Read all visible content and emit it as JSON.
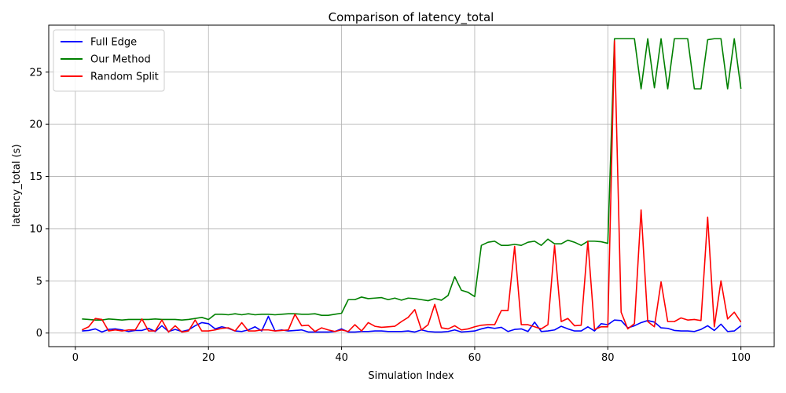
{
  "chart_data": {
    "type": "line",
    "title": "Comparison of latency_total",
    "xlabel": "Simulation Index",
    "ylabel": "latency_total (s)",
    "xlim": [
      -4,
      105
    ],
    "ylim": [
      -1.3,
      29.5
    ],
    "xticks": [
      0,
      20,
      40,
      60,
      80,
      100
    ],
    "yticks": [
      0,
      5,
      10,
      15,
      20,
      25
    ],
    "grid": true,
    "legend_position": "top-left",
    "x": [
      1,
      2,
      3,
      4,
      5,
      6,
      7,
      8,
      9,
      10,
      11,
      12,
      13,
      14,
      15,
      16,
      17,
      18,
      19,
      20,
      21,
      22,
      23,
      24,
      25,
      26,
      27,
      28,
      29,
      30,
      31,
      32,
      33,
      34,
      35,
      36,
      37,
      38,
      39,
      40,
      41,
      42,
      43,
      44,
      45,
      46,
      47,
      48,
      49,
      50,
      51,
      52,
      53,
      54,
      55,
      56,
      57,
      58,
      59,
      60,
      61,
      62,
      63,
      64,
      65,
      66,
      67,
      68,
      69,
      70,
      71,
      72,
      73,
      74,
      75,
      76,
      77,
      78,
      79,
      80,
      81,
      82,
      83,
      84,
      85,
      86,
      87,
      88,
      89,
      90,
      91,
      92,
      93,
      94,
      95,
      96,
      97,
      98,
      99,
      100
    ],
    "series": [
      {
        "name": "Full Edge",
        "color": "#0000ff",
        "values": [
          0.2,
          0.25,
          0.4,
          0.1,
          0.35,
          0.4,
          0.3,
          0.15,
          0.25,
          0.25,
          0.45,
          0.15,
          0.7,
          0.15,
          0.35,
          0.15,
          0.3,
          0.7,
          1.0,
          0.9,
          0.4,
          0.6,
          0.45,
          0.2,
          0.15,
          0.3,
          0.6,
          0.2,
          1.6,
          0.2,
          0.3,
          0.2,
          0.25,
          0.3,
          0.1,
          0.1,
          0.1,
          0.1,
          0.15,
          0.4,
          0.1,
          0.1,
          0.15,
          0.15,
          0.2,
          0.2,
          0.15,
          0.15,
          0.15,
          0.2,
          0.1,
          0.3,
          0.15,
          0.1,
          0.1,
          0.15,
          0.3,
          0.1,
          0.15,
          0.2,
          0.4,
          0.55,
          0.45,
          0.55,
          0.15,
          0.35,
          0.4,
          0.15,
          1.05,
          0.15,
          0.2,
          0.3,
          0.65,
          0.4,
          0.2,
          0.2,
          0.6,
          0.2,
          0.9,
          0.8,
          1.25,
          1.2,
          0.5,
          0.7,
          1.0,
          1.2,
          1.05,
          0.5,
          0.45,
          0.25,
          0.2,
          0.2,
          0.15,
          0.35,
          0.7,
          0.25,
          0.85,
          0.15,
          0.2,
          0.7
        ]
      },
      {
        "name": "Our Method",
        "color": "#008000",
        "values": [
          1.35,
          1.3,
          1.25,
          1.25,
          1.35,
          1.3,
          1.25,
          1.3,
          1.3,
          1.3,
          1.3,
          1.35,
          1.3,
          1.3,
          1.3,
          1.25,
          1.3,
          1.4,
          1.5,
          1.3,
          1.8,
          1.8,
          1.75,
          1.85,
          1.75,
          1.85,
          1.75,
          1.8,
          1.8,
          1.75,
          1.8,
          1.85,
          1.85,
          1.8,
          1.8,
          1.85,
          1.7,
          1.7,
          1.8,
          1.9,
          3.2,
          3.2,
          3.45,
          3.3,
          3.35,
          3.4,
          3.2,
          3.35,
          3.15,
          3.35,
          3.3,
          3.2,
          3.1,
          3.3,
          3.15,
          3.6,
          5.4,
          4.1,
          3.9,
          3.5,
          8.4,
          8.7,
          8.8,
          8.4,
          8.4,
          8.5,
          8.4,
          8.7,
          8.8,
          8.4,
          9.0,
          8.55,
          8.55,
          8.9,
          8.7,
          8.4,
          8.8,
          8.8,
          8.75,
          8.6,
          28.2,
          28.2,
          28.2,
          28.2,
          23.4,
          28.2,
          23.5,
          28.2,
          23.4,
          28.2,
          28.2,
          28.2,
          23.4,
          23.4,
          28.1,
          28.2,
          28.2,
          23.4,
          28.2,
          23.4
        ]
      },
      {
        "name": "Random Split",
        "color": "#ff0000",
        "values": [
          0.3,
          0.6,
          1.4,
          1.3,
          0.2,
          0.3,
          0.2,
          0.3,
          0.3,
          1.35,
          0.2,
          0.2,
          1.25,
          0.1,
          0.7,
          0.1,
          0.2,
          1.25,
          0.2,
          0.2,
          0.3,
          0.45,
          0.5,
          0.2,
          1.0,
          0.2,
          0.2,
          0.3,
          0.3,
          0.2,
          0.25,
          0.3,
          1.8,
          0.7,
          0.75,
          0.15,
          0.5,
          0.3,
          0.15,
          0.3,
          0.15,
          0.8,
          0.2,
          1.0,
          0.65,
          0.55,
          0.6,
          0.65,
          1.1,
          1.5,
          2.25,
          0.3,
          0.8,
          2.75,
          0.5,
          0.4,
          0.7,
          0.3,
          0.4,
          0.6,
          0.75,
          0.8,
          0.8,
          2.15,
          2.15,
          8.3,
          0.8,
          0.8,
          0.6,
          0.4,
          0.8,
          8.4,
          1.1,
          1.4,
          0.7,
          0.75,
          8.8,
          0.35,
          0.6,
          0.6,
          28.0,
          2.0,
          0.4,
          0.9,
          11.8,
          1.1,
          0.6,
          4.9,
          1.1,
          1.1,
          1.45,
          1.25,
          1.3,
          1.2,
          11.1,
          0.6,
          5.0,
          1.35,
          2.0,
          1.05
        ]
      }
    ]
  }
}
